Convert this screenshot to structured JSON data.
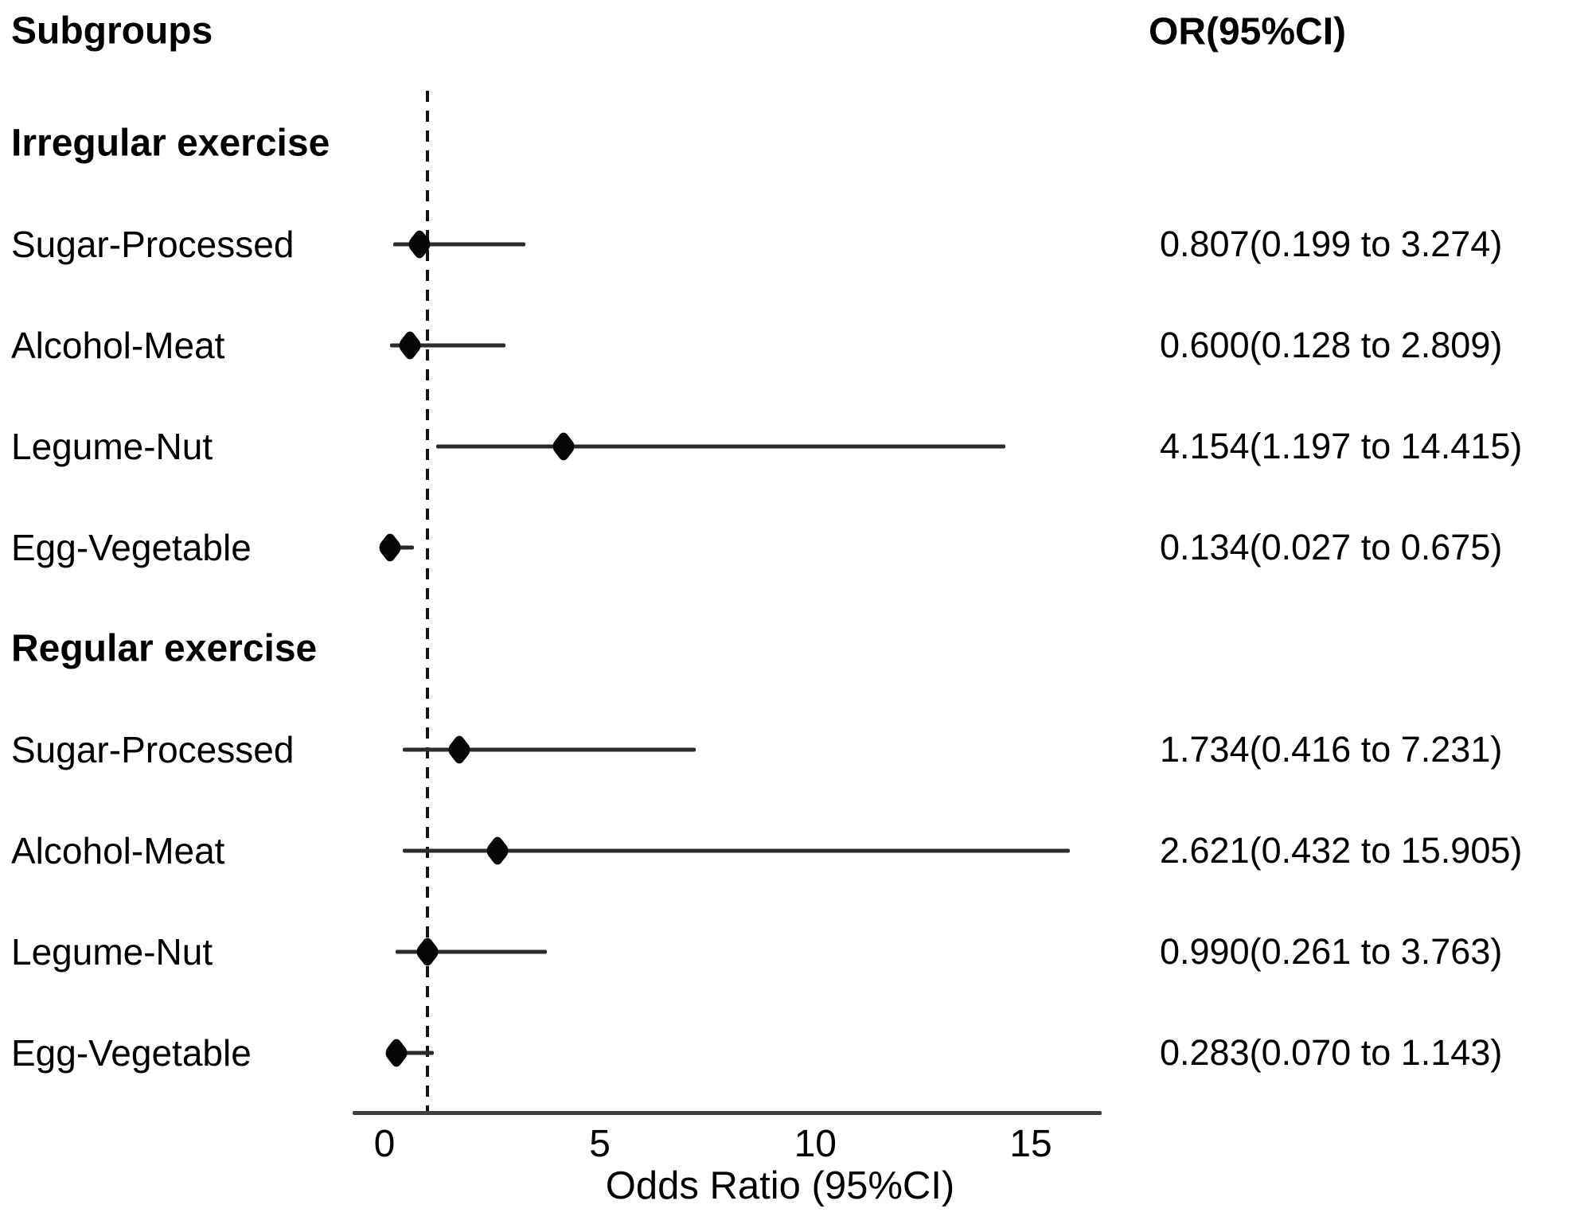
{
  "headers": {
    "subgroups": "Subgroups",
    "or": "OR(95%CI)"
  },
  "axis": {
    "label": "Odds Ratio (95%CI)"
  },
  "chart_data": {
    "type": "forest",
    "title": "",
    "xlabel": "Odds Ratio (95%CI)",
    "x_ticks": [
      0,
      5,
      10,
      15
    ],
    "xlim": [
      -0.74,
      16.63
    ],
    "reference_line": 1,
    "groups": [
      {
        "label": "Irregular exercise",
        "rows": [
          {
            "label": "Sugar-Processed",
            "or": 0.807,
            "ci_low": 0.199,
            "ci_high": 3.274,
            "or_text": "0.807(0.199 to 3.274)"
          },
          {
            "label": "Alcohol-Meat",
            "or": 0.6,
            "ci_low": 0.128,
            "ci_high": 2.809,
            "or_text": "0.600(0.128 to 2.809)"
          },
          {
            "label": "Legume-Nut",
            "or": 4.154,
            "ci_low": 1.197,
            "ci_high": 14.415,
            "or_text": "4.154(1.197 to 14.415)"
          },
          {
            "label": "Egg-Vegetable",
            "or": 0.134,
            "ci_low": 0.027,
            "ci_high": 0.675,
            "or_text": "0.134(0.027 to 0.675)"
          }
        ]
      },
      {
        "label": "Regular exercise",
        "rows": [
          {
            "label": "Sugar-Processed",
            "or": 1.734,
            "ci_low": 0.416,
            "ci_high": 7.231,
            "or_text": "1.734(0.416 to 7.231)"
          },
          {
            "label": "Alcohol-Meat",
            "or": 2.621,
            "ci_low": 0.432,
            "ci_high": 15.905,
            "or_text": "2.621(0.432 to 15.905)"
          },
          {
            "label": "Legume-Nut",
            "or": 0.99,
            "ci_low": 0.261,
            "ci_high": 3.763,
            "or_text": "0.990(0.261 to 3.763)"
          },
          {
            "label": "Egg-Vegetable",
            "or": 0.283,
            "ci_low": 0.07,
            "ci_high": 1.143,
            "or_text": "0.283(0.070 to 1.143)"
          }
        ]
      }
    ]
  }
}
